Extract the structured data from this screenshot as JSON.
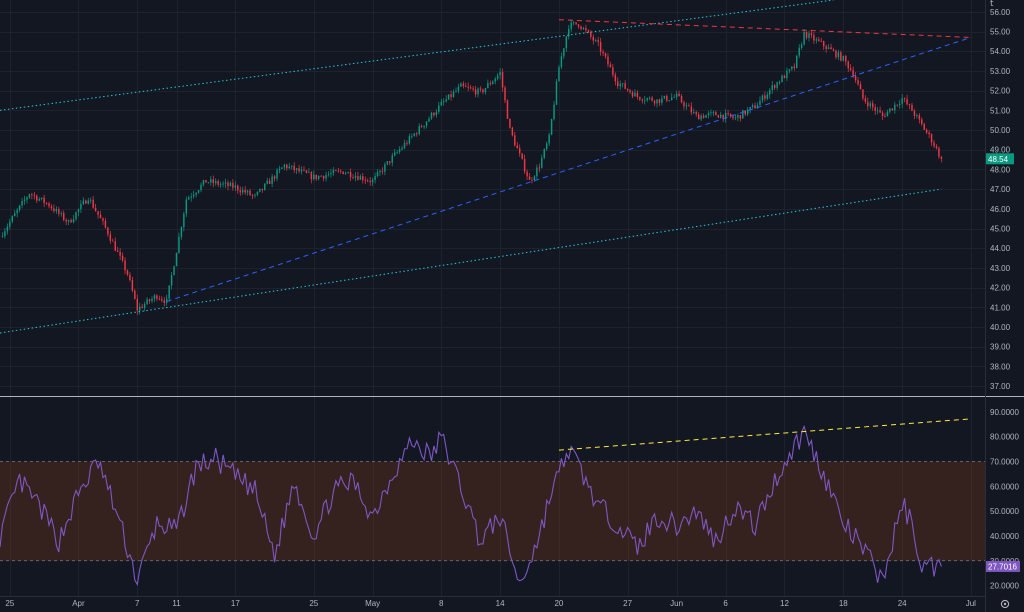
{
  "chart_data": [
    {
      "type": "candlestick",
      "name": "price",
      "x_axis": {
        "type": "date",
        "range": [
          "2023-03-24",
          "2023-06-30"
        ]
      },
      "y_axis": {
        "range": [
          36.5,
          56.6
        ],
        "side": "right",
        "tick_labels": [
          "56.00",
          "55.00",
          "54.00",
          "53.00",
          "52.00",
          "51.00",
          "50.00",
          "49.00",
          "48.00",
          "47.00",
          "46.00",
          "45.00",
          "44.00",
          "43.00",
          "42.00",
          "41.00",
          "40.00",
          "39.00",
          "38.00",
          "37.00"
        ]
      },
      "last_price": {
        "label": "48.54",
        "value": 48.54
      },
      "up_color": "#089981",
      "down_color": "#f23645",
      "waypoints": [
        [
          "2023-03-24",
          44.6
        ],
        [
          "2023-03-27",
          46.8
        ],
        [
          "2023-03-29",
          46.2
        ],
        [
          "2023-03-31",
          45.3
        ],
        [
          "2023-04-02",
          46.6
        ],
        [
          "2023-04-04",
          44.8
        ],
        [
          "2023-04-06",
          42.7
        ],
        [
          "2023-04-07",
          40.9
        ],
        [
          "2023-04-09",
          41.6
        ],
        [
          "2023-04-10",
          41.3
        ],
        [
          "2023-04-12",
          46.5
        ],
        [
          "2023-04-14",
          47.4
        ],
        [
          "2023-04-17",
          47.1
        ],
        [
          "2023-04-19",
          46.6
        ],
        [
          "2023-04-22",
          48.2
        ],
        [
          "2023-04-25",
          47.6
        ],
        [
          "2023-04-28",
          47.9
        ],
        [
          "2023-05-01",
          47.4
        ],
        [
          "2023-05-03",
          48.6
        ],
        [
          "2023-05-06",
          50.2
        ],
        [
          "2023-05-08",
          51.3
        ],
        [
          "2023-05-10",
          52.2
        ],
        [
          "2023-05-12",
          51.9
        ],
        [
          "2023-05-14",
          52.9
        ],
        [
          "2023-05-15",
          50.0
        ],
        [
          "2023-05-17",
          47.4
        ],
        [
          "2023-05-18",
          48.2
        ],
        [
          "2023-05-19",
          49.6
        ],
        [
          "2023-05-20",
          53.2
        ],
        [
          "2023-05-21",
          55.3
        ],
        [
          "2023-05-22",
          55.4
        ],
        [
          "2023-05-24",
          54.3
        ],
        [
          "2023-05-26",
          52.4
        ],
        [
          "2023-05-28",
          51.7
        ],
        [
          "2023-05-30",
          51.5
        ],
        [
          "2023-06-01",
          51.7
        ],
        [
          "2023-06-03",
          50.7
        ],
        [
          "2023-06-05",
          50.8
        ],
        [
          "2023-06-07",
          50.6
        ],
        [
          "2023-06-09",
          51.2
        ],
        [
          "2023-06-11",
          52.3
        ],
        [
          "2023-06-13",
          53.2
        ],
        [
          "2023-06-14",
          54.9
        ],
        [
          "2023-06-16",
          54.3
        ],
        [
          "2023-06-18",
          53.6
        ],
        [
          "2023-06-19",
          52.9
        ],
        [
          "2023-06-20",
          51.6
        ],
        [
          "2023-06-22",
          50.7
        ],
        [
          "2023-06-24",
          51.6
        ],
        [
          "2023-06-25",
          51.0
        ],
        [
          "2023-06-27",
          49.5
        ],
        [
          "2023-06-28",
          48.54
        ]
      ],
      "drawings": [
        {
          "kind": "dotted",
          "color": "#26c6da",
          "points": [
            [
              "2023-03-24",
              51.0
            ],
            [
              "2023-06-17",
              56.6
            ]
          ]
        },
        {
          "kind": "dotted",
          "color": "#26c6da",
          "points": [
            [
              "2023-03-24",
              39.7
            ],
            [
              "2023-06-28",
              47.0
            ]
          ]
        },
        {
          "kind": "dashed",
          "color": "#2962ff",
          "points": [
            [
              "2023-04-10",
              41.3
            ],
            [
              "2023-07-01",
              54.7
            ]
          ]
        },
        {
          "kind": "dashed",
          "color": "#f23645",
          "points": [
            [
              "2023-05-20",
              55.6
            ],
            [
              "2023-07-01",
              54.7
            ]
          ]
        }
      ]
    },
    {
      "type": "line",
      "name": "oscillator",
      "x_axis": {
        "type": "date",
        "range": [
          "2023-03-24",
          "2023-06-30"
        ]
      },
      "y_axis": {
        "range": [
          15.8,
          96.0
        ],
        "side": "right",
        "tick_labels": [
          "90.0000",
          "80.0000",
          "70.0000",
          "60.0000",
          "50.0000",
          "40.0000",
          "30.0000",
          "20.0000"
        ]
      },
      "band": {
        "lower": 30,
        "upper": 70,
        "color": "#7e3b18"
      },
      "last_value": {
        "label": "27.7016",
        "value": 27.7016
      },
      "line_color": "#7e57c2",
      "waypoints": [
        [
          "2023-03-24",
          40
        ],
        [
          "2023-03-26",
          62
        ],
        [
          "2023-03-28",
          52
        ],
        [
          "2023-03-30",
          38
        ],
        [
          "2023-04-01",
          57
        ],
        [
          "2023-04-03",
          70
        ],
        [
          "2023-04-05",
          48
        ],
        [
          "2023-04-07",
          22
        ],
        [
          "2023-04-09",
          45
        ],
        [
          "2023-04-11",
          42
        ],
        [
          "2023-04-13",
          68
        ],
        [
          "2023-04-15",
          71
        ],
        [
          "2023-04-17",
          64
        ],
        [
          "2023-04-19",
          58
        ],
        [
          "2023-04-21",
          32
        ],
        [
          "2023-04-23",
          62
        ],
        [
          "2023-04-25",
          40
        ],
        [
          "2023-04-27",
          58
        ],
        [
          "2023-04-29",
          62
        ],
        [
          "2023-05-01",
          48
        ],
        [
          "2023-05-03",
          65
        ],
        [
          "2023-05-05",
          78
        ],
        [
          "2023-05-07",
          72
        ],
        [
          "2023-05-08",
          80
        ],
        [
          "2023-05-10",
          60
        ],
        [
          "2023-05-12",
          38
        ],
        [
          "2023-05-14",
          48
        ],
        [
          "2023-05-16",
          20
        ],
        [
          "2023-05-18",
          40
        ],
        [
          "2023-05-19",
          55
        ],
        [
          "2023-05-21",
          75
        ],
        [
          "2023-05-22",
          68
        ],
        [
          "2023-05-24",
          52
        ],
        [
          "2023-05-26",
          45
        ],
        [
          "2023-05-28",
          35
        ],
        [
          "2023-05-30",
          48
        ],
        [
          "2023-06-01",
          44
        ],
        [
          "2023-06-03",
          50
        ],
        [
          "2023-06-05",
          38
        ],
        [
          "2023-06-07",
          52
        ],
        [
          "2023-06-09",
          44
        ],
        [
          "2023-06-11",
          62
        ],
        [
          "2023-06-13",
          76
        ],
        [
          "2023-06-14",
          82
        ],
        [
          "2023-06-16",
          65
        ],
        [
          "2023-06-18",
          45
        ],
        [
          "2023-06-20",
          35
        ],
        [
          "2023-06-22",
          22
        ],
        [
          "2023-06-24",
          53
        ],
        [
          "2023-06-25",
          45
        ],
        [
          "2023-06-26",
          28
        ],
        [
          "2023-06-28",
          27.7016
        ]
      ],
      "drawings": [
        {
          "kind": "dashed",
          "color": "#ffeb3b",
          "points": [
            [
              "2023-05-20",
              74.6
            ],
            [
              "2023-07-01",
              87.2
            ]
          ]
        }
      ]
    }
  ],
  "time_axis": {
    "labels": [
      {
        "text": "25",
        "date": "2023-03-25"
      },
      {
        "text": "Apr",
        "date": "2023-04-01"
      },
      {
        "text": "7",
        "date": "2023-04-07"
      },
      {
        "text": "11",
        "date": "2023-04-11"
      },
      {
        "text": "17",
        "date": "2023-04-17"
      },
      {
        "text": "25",
        "date": "2023-04-25"
      },
      {
        "text": "May",
        "date": "2023-05-01"
      },
      {
        "text": "8",
        "date": "2023-05-08"
      },
      {
        "text": "14",
        "date": "2023-05-14"
      },
      {
        "text": "20",
        "date": "2023-05-20"
      },
      {
        "text": "27",
        "date": "2023-05-27"
      },
      {
        "text": "Jun",
        "date": "2023-06-01"
      },
      {
        "text": "6",
        "date": "2023-06-06"
      },
      {
        "text": "12",
        "date": "2023-06-12"
      },
      {
        "text": "18",
        "date": "2023-06-18"
      },
      {
        "text": "24",
        "date": "2023-06-24"
      },
      {
        "text": "Jul",
        "date": "2023-07-01"
      }
    ]
  },
  "ui": {
    "top_right_glyph": "t",
    "settings_icon": "gear-icon"
  }
}
